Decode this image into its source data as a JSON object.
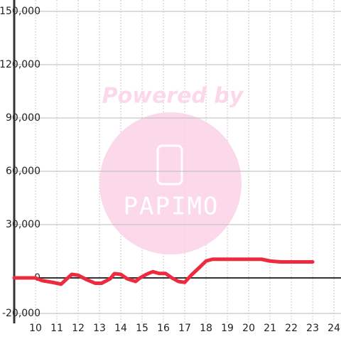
{
  "chart_data": {
    "type": "line",
    "watermark": {
      "heading": "Powered by",
      "brand": "PAPIMO"
    },
    "x": [
      9.0,
      10.0,
      10.3,
      10.8,
      11.2,
      11.7,
      12.0,
      12.4,
      12.8,
      13.1,
      13.5,
      13.7,
      14.0,
      14.3,
      14.7,
      14.9,
      15.2,
      15.5,
      15.8,
      16.1,
      16.4,
      16.7,
      17.0,
      17.3,
      17.7,
      18.0,
      18.3,
      19.0,
      20.0,
      20.6,
      21.0,
      21.5,
      22.0,
      23.0
    ],
    "series": [
      {
        "color": "#ee2a3e",
        "values": [
          0,
          0,
          -1500,
          -2500,
          -3500,
          2000,
          1500,
          -1000,
          -3000,
          -3000,
          -500,
          2400,
          2000,
          -500,
          -2000,
          0,
          2000,
          3500,
          2500,
          2500,
          0,
          -2000,
          -2500,
          1500,
          6000,
          9500,
          10500,
          10500,
          10500,
          10500,
          9500,
          9000,
          9000,
          9000
        ]
      }
    ],
    "xlim": [
      9,
      24.33
    ],
    "xticks": [
      10,
      11,
      12,
      13,
      14,
      15,
      16,
      17,
      18,
      19,
      20,
      21,
      22,
      23,
      24
    ],
    "ylim": [
      -20000,
      150000
    ],
    "yticks": [
      {
        "value": -20000,
        "label": "-20,000"
      },
      0,
      {
        "value": 30000,
        "label": "30,000"
      },
      {
        "value": 60000,
        "label": "60,000"
      },
      {
        "value": 90000,
        "label": "90,000"
      },
      {
        "value": 120000,
        "label": "120,000"
      },
      {
        "value": 150000,
        "label": "150,000"
      }
    ],
    "grid": true
  }
}
